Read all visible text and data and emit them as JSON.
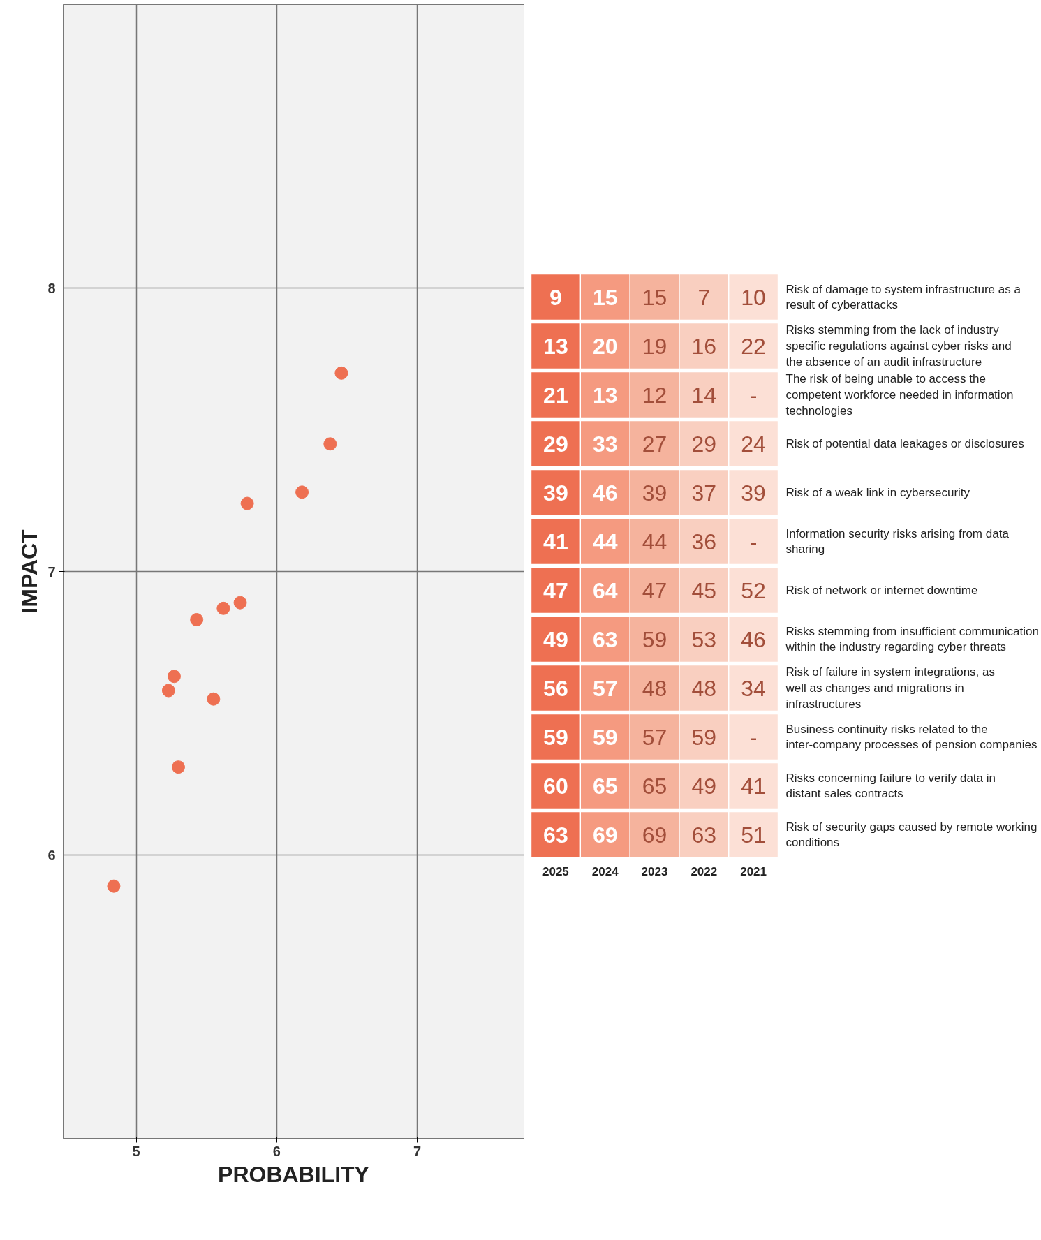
{
  "chart_data": [
    {
      "type": "scatter",
      "xlabel": "PROBABILITY",
      "ylabel": "IMPACT",
      "xlim": [
        4.48,
        7.76
      ],
      "ylim": [
        5,
        9
      ],
      "xticks": [
        5,
        6,
        7
      ],
      "yticks": [
        6,
        7,
        8
      ],
      "grid": true,
      "marker": "circle",
      "series": [
        {
          "color": "#ee7052",
          "x": [
            6.46,
            6.38,
            6.18,
            5.79,
            5.74,
            5.62,
            5.43,
            5.55,
            5.27,
            5.23,
            5.3,
            4.84
          ],
          "values": [
            7.7,
            7.45,
            7.28,
            7.24,
            6.89,
            6.87,
            6.83,
            6.55,
            6.63,
            6.58,
            6.31,
            5.89
          ]
        }
      ]
    },
    {
      "type": "heatmap",
      "categories": [
        "2025",
        "2024",
        "2023",
        "2022",
        "2021"
      ],
      "y_categories": [
        "Risk of damage to system infrastructure as a result of cyberattacks",
        "Risks stemming from the lack of industry specific regulations against cyber risks and the absence of an audit infrastructure",
        "The risk of being unable to access the competent workforce needed in information technologies",
        "Risk of potential data leakages or disclosures",
        "Risk of a weak link in cybersecurity",
        "Information security risks arising from data sharing",
        "Risk of network or internet downtime",
        "Risks stemming from insufficient communication within the industry regarding cyber threats",
        "Risk of failure in system integrations, as well as changes and migrations in infrastructures",
        "Business continuity risks related to the inter-company processes of pension companies",
        "Risks concerning failure to verify data in distant sales contracts",
        "Risk of security gaps caused by remote working conditions"
      ],
      "colors": [
        "#ee7052",
        "#f59a80",
        "#f5b39d",
        "#f9cfc0",
        "#fce0d6"
      ],
      "cells": [
        [
          9,
          15,
          15,
          7,
          10
        ],
        [
          13,
          20,
          19,
          16,
          22
        ],
        [
          21,
          13,
          12,
          14,
          null
        ],
        [
          29,
          33,
          27,
          29,
          24
        ],
        [
          39,
          46,
          39,
          37,
          39
        ],
        [
          41,
          44,
          44,
          36,
          null
        ],
        [
          47,
          64,
          47,
          45,
          52
        ],
        [
          49,
          63,
          59,
          53,
          46
        ],
        [
          56,
          57,
          48,
          48,
          34
        ],
        [
          59,
          59,
          57,
          59,
          null
        ],
        [
          60,
          65,
          65,
          49,
          41
        ],
        [
          63,
          69,
          69,
          63,
          51
        ]
      ],
      "cell_labels": [
        [
          "9",
          "15",
          "15",
          "7",
          "10"
        ],
        [
          "13",
          "20",
          "19",
          "16",
          "22"
        ],
        [
          "21",
          "13",
          "12",
          "14",
          "-"
        ],
        [
          "29",
          "33",
          "27",
          "29",
          "24"
        ],
        [
          "39",
          "46",
          "39",
          "37",
          "39"
        ],
        [
          "41",
          "44",
          "44",
          "36",
          "-"
        ],
        [
          "47",
          "64",
          "47",
          "45",
          "52"
        ],
        [
          "49",
          "63",
          "59",
          "53",
          "46"
        ],
        [
          "56",
          "57",
          "48",
          "48",
          "34"
        ],
        [
          "59",
          "59",
          "57",
          "59",
          "-"
        ],
        [
          "60",
          "65",
          "65",
          "49",
          "41"
        ],
        [
          "63",
          "69",
          "69",
          "63",
          "51"
        ]
      ]
    }
  ]
}
